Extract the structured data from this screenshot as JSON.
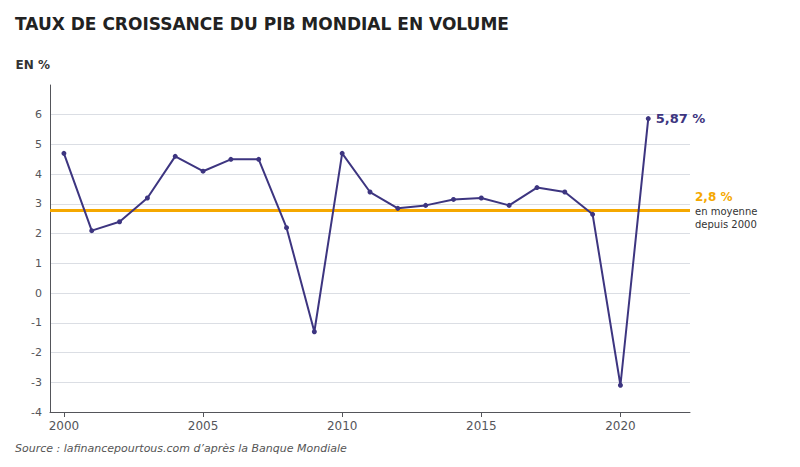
{
  "chart_data": {
    "type": "line",
    "title": "TAUX DE CROISSANCE DU PIB MONDIAL EN VOLUME",
    "ylabel": "EN %",
    "source": "Source : lafinancepourtous.com d’après la Banque Mondiale",
    "x": [
      2000,
      2001,
      2002,
      2003,
      2004,
      2005,
      2006,
      2007,
      2008,
      2009,
      2010,
      2011,
      2012,
      2013,
      2014,
      2015,
      2016,
      2017,
      2018,
      2019,
      2020,
      2021
    ],
    "values": [
      4.7,
      2.1,
      2.4,
      3.2,
      4.6,
      4.1,
      4.5,
      4.5,
      2.2,
      -1.3,
      4.7,
      3.4,
      2.85,
      2.95,
      3.15,
      3.2,
      2.95,
      3.55,
      3.4,
      2.65,
      -3.1,
      5.87
    ],
    "color": "#3d3580",
    "marker": "circle",
    "xlim": [
      1999.5,
      2022.5
    ],
    "xticks": [
      2000,
      2005,
      2010,
      2015,
      2020
    ],
    "ylim": [
      -4,
      7
    ],
    "yticks": [
      -4,
      -3,
      -2,
      -1,
      0,
      1,
      2,
      3,
      4,
      5,
      6
    ],
    "grid": true,
    "annotations": [
      {
        "text": "5,87 %",
        "x": 2021,
        "y": 5.87,
        "color": "#3d3580"
      }
    ],
    "reference_line": {
      "y": 2.8,
      "color": "#f5a800",
      "labels": [
        "2,8 %",
        "en moyenne",
        "depuis 2000"
      ]
    }
  }
}
